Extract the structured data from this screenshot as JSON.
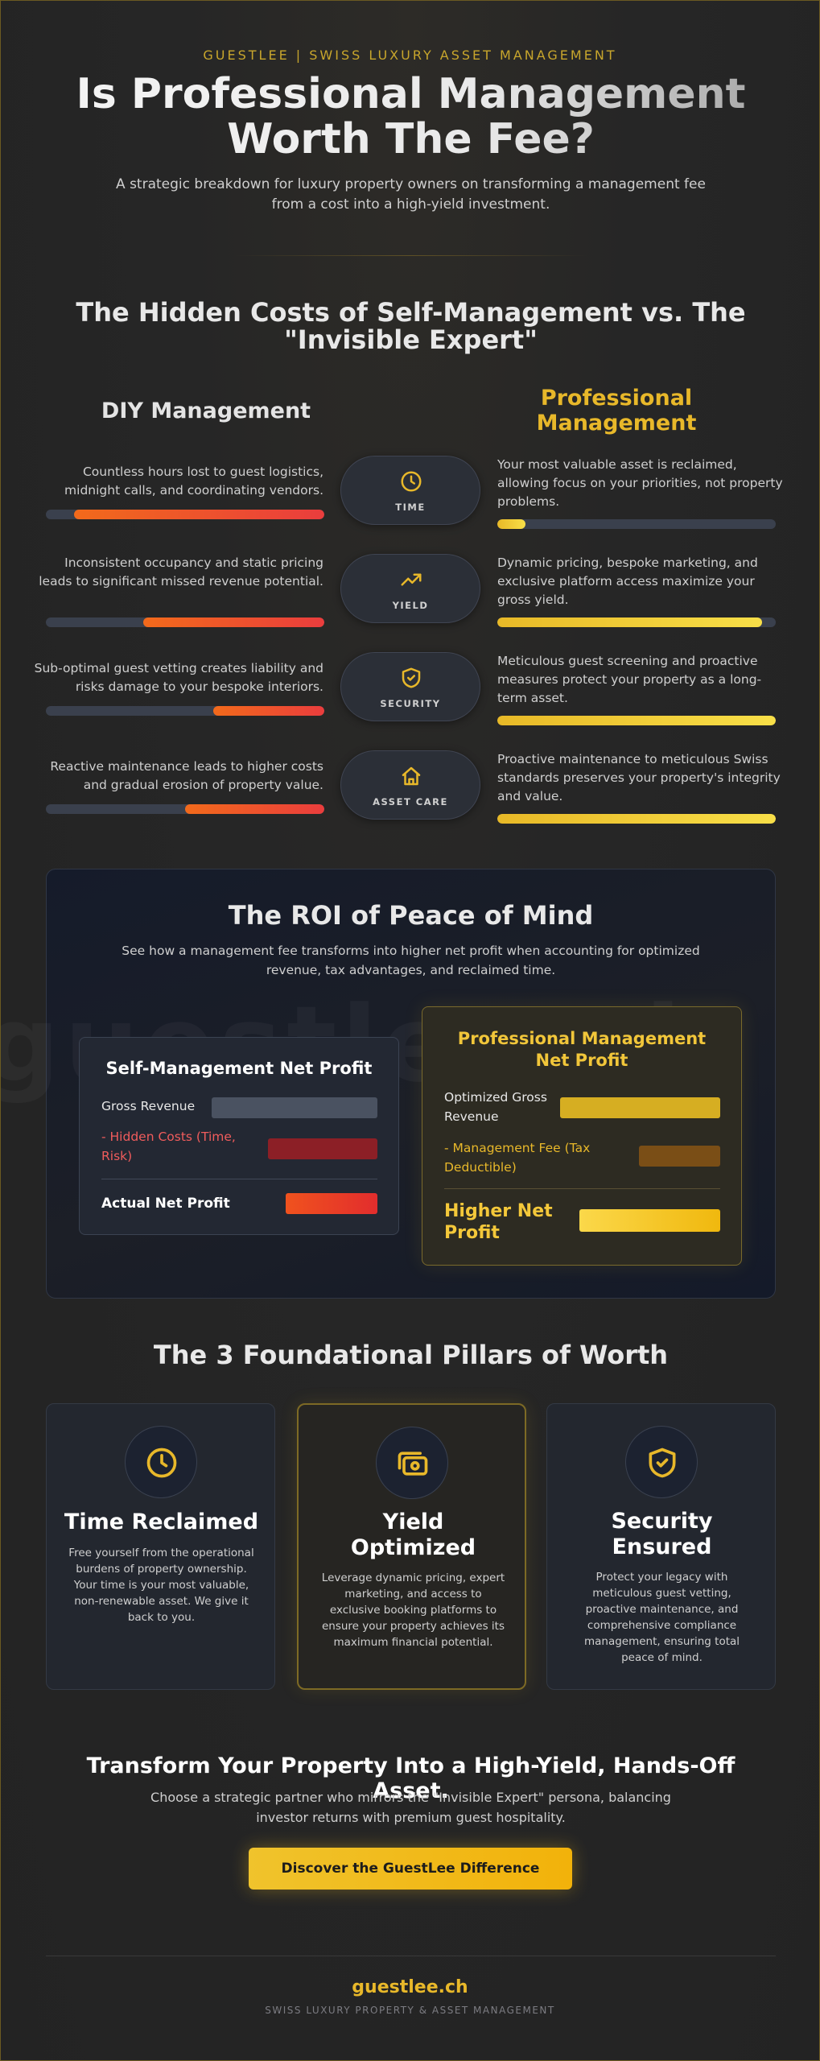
{
  "header": {
    "brand": "GUESTLEE | SWISS LUXURY ASSET MANAGEMENT",
    "title_line1": "Is Professional Management",
    "title_line2": "Worth The Fee?",
    "subtitle": "A strategic breakdown for luxury property owners on transforming a management fee from a cost into a high-yield investment."
  },
  "comparison": {
    "title_line1": "The Hidden Costs of Self-Management vs. The",
    "title_line2": "\"Invisible Expert\"",
    "diy_heading": "DIY Management",
    "pro_heading_line1": "Professional",
    "pro_heading_line2": "Management",
    "rows": [
      {
        "label": "TIME",
        "icon": "clock-icon",
        "diy_text": "Countless hours lost to guest logistics, midnight calls, and coordinating vendors.",
        "diy_level": 0.9,
        "pro_text": "Your most valuable asset is reclaimed, allowing focus on your priorities, not property problems.",
        "pro_level": 0.1
      },
      {
        "label": "YIELD",
        "icon": "trending-up-icon",
        "diy_text": "Inconsistent occupancy and static pricing leads to significant missed revenue potential.",
        "diy_level": 0.65,
        "pro_text": "Dynamic pricing, bespoke marketing, and exclusive platform access maximize your gross yield.",
        "pro_level": 0.95
      },
      {
        "label": "SECURITY",
        "icon": "shield-check-icon",
        "diy_text": "Sub-optimal guest vetting creates liability and risks damage to your bespoke interiors.",
        "diy_level": 0.4,
        "pro_text": "Meticulous guest screening and proactive measures protect your property as a long-term asset.",
        "pro_level": 1.0
      },
      {
        "label": "ASSET CARE",
        "icon": "home-icon",
        "diy_text": "Reactive maintenance leads to higher costs and gradual erosion of property value.",
        "diy_level": 0.5,
        "pro_text": "Proactive maintenance to meticulous Swiss standards preserves your property's integrity and value.",
        "pro_level": 1.0
      }
    ]
  },
  "roi": {
    "title": "The ROI of Peace of Mind",
    "subtitle": "See how a management fee transforms into higher net profit when accounting for optimized revenue, tax advantages, and reclaimed time.",
    "watermark": "guestlee.ch",
    "self": {
      "title": "Self-Management Net Profit",
      "gross_label": "Gross Revenue",
      "costs_label": "- Hidden Costs (Time, Risk)",
      "net_label": "Actual Net Profit"
    },
    "pro": {
      "title_line1": "Professional Management",
      "title_line2": "Net Profit",
      "gross_label": "Optimized Gross Revenue",
      "fee_label": "- Management Fee (Tax Deductible)",
      "net_label": "Higher Net Profit"
    }
  },
  "pillars": {
    "title": "The 3 Foundational Pillars of Worth",
    "items": [
      {
        "icon": "clock-icon",
        "title_line1": "Time Reclaimed",
        "title_line2": "",
        "desc": "Free yourself from the operational burdens of property ownership. Your time is your most valuable, non-renewable asset. We give it back to you."
      },
      {
        "icon": "cash-icon",
        "title_line1": "Yield",
        "title_line2": "Optimized",
        "desc": "Leverage dynamic pricing, expert marketing, and access to exclusive booking platforms to ensure your property achieves its maximum financial potential."
      },
      {
        "icon": "shield-check-icon",
        "title_line1": "Security",
        "title_line2": "Ensured",
        "desc": "Protect your legacy with meticulous guest vetting, proactive maintenance, and comprehensive compliance management, ensuring total peace of mind."
      }
    ]
  },
  "cta": {
    "title": "Transform Your Property Into a High-Yield, Hands-Off Asset.",
    "subtitle": "Choose a strategic partner who mirrors the \"Invisible Expert\" persona, balancing investor returns with premium guest hospitality.",
    "button": "Discover the GuestLee Difference"
  },
  "footer": {
    "site": "guestlee.ch",
    "tagline": "SWISS LUXURY PROPERTY & ASSET MANAGEMENT"
  },
  "colors": {
    "gold": "#e8b82a",
    "diy_bar": "#ef5226",
    "track": "#3a404d"
  }
}
